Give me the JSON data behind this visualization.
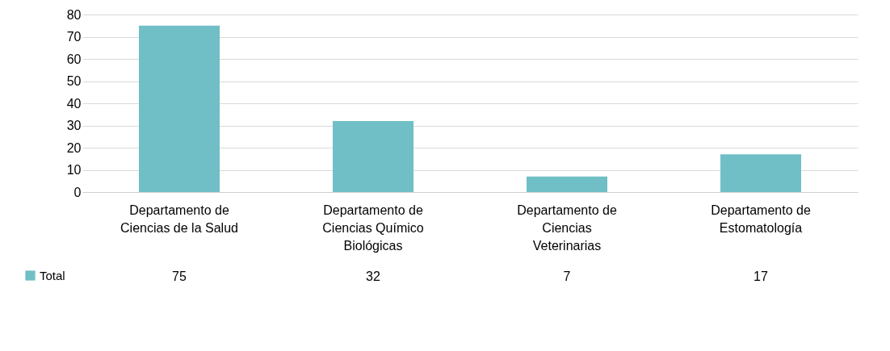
{
  "chart_data": {
    "type": "bar",
    "categories": [
      "Departamento de Ciencias de la Salud",
      "Departamento de Ciencias Químico Biológicas",
      "Departamento de Ciencias Veterinarias",
      "Departamento de Estomatología"
    ],
    "series": [
      {
        "name": "Total",
        "color": "#70bfc6",
        "values": [
          75,
          32,
          7,
          17
        ]
      }
    ],
    "ylim": [
      0,
      80
    ],
    "yticks": [
      0,
      10,
      20,
      30,
      40,
      50,
      60,
      70,
      80
    ],
    "grid": "y",
    "legend": "bottom left",
    "data_labels": true
  }
}
